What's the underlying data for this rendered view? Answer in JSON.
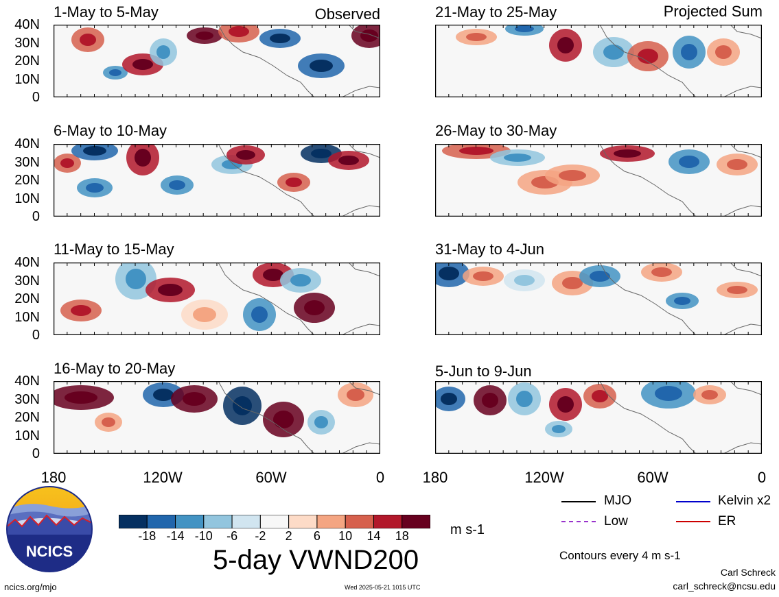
{
  "figure": {
    "title": "5-day VWND200",
    "units": "m s-1",
    "contour_note": "Contours every 4 m s-1",
    "author": "Carl Schreck",
    "email": "carl_schreck@ncsu.edu",
    "url": "ncics.org/mjo",
    "timestamp": "Wed 2025-05-21 1015 UTC",
    "logo_text": "NCICS"
  },
  "columns": {
    "left_tag": "Observed",
    "right_tag": "Projected Sum"
  },
  "panels": [
    {
      "title": "1-May to 5-May"
    },
    {
      "title": "6-May to 10-May"
    },
    {
      "title": "11-May to 15-May"
    },
    {
      "title": "16-May to 20-May"
    },
    {
      "title": "21-May to 25-May"
    },
    {
      "title": "26-May to 30-May"
    },
    {
      "title": "31-May to 4-Jun"
    },
    {
      "title": "5-Jun to 9-Jun"
    }
  ],
  "y_axis_labels": [
    "40N",
    "30N",
    "20N",
    "10N",
    "0"
  ],
  "x_axis_labels": [
    "180",
    "120W",
    "60W",
    "0"
  ],
  "colorbar": {
    "ticks": [
      "-18",
      "-14",
      "-10",
      "-6",
      "-2",
      "2",
      "6",
      "10",
      "14",
      "18"
    ],
    "colors": [
      "#053061",
      "#2166ac",
      "#4393c3",
      "#92c5de",
      "#d1e5f0",
      "#f7f7f7",
      "#fddbc7",
      "#f4a582",
      "#d6604d",
      "#b2182b",
      "#67001f"
    ]
  },
  "legend": {
    "items": [
      {
        "label": "MJO",
        "color": "#000000"
      },
      {
        "label": "Kelvin x2",
        "color": "#0000cc"
      },
      {
        "label": "Low",
        "color": "#9933cc"
      },
      {
        "label": "ER",
        "color": "#cc0000"
      }
    ]
  }
}
